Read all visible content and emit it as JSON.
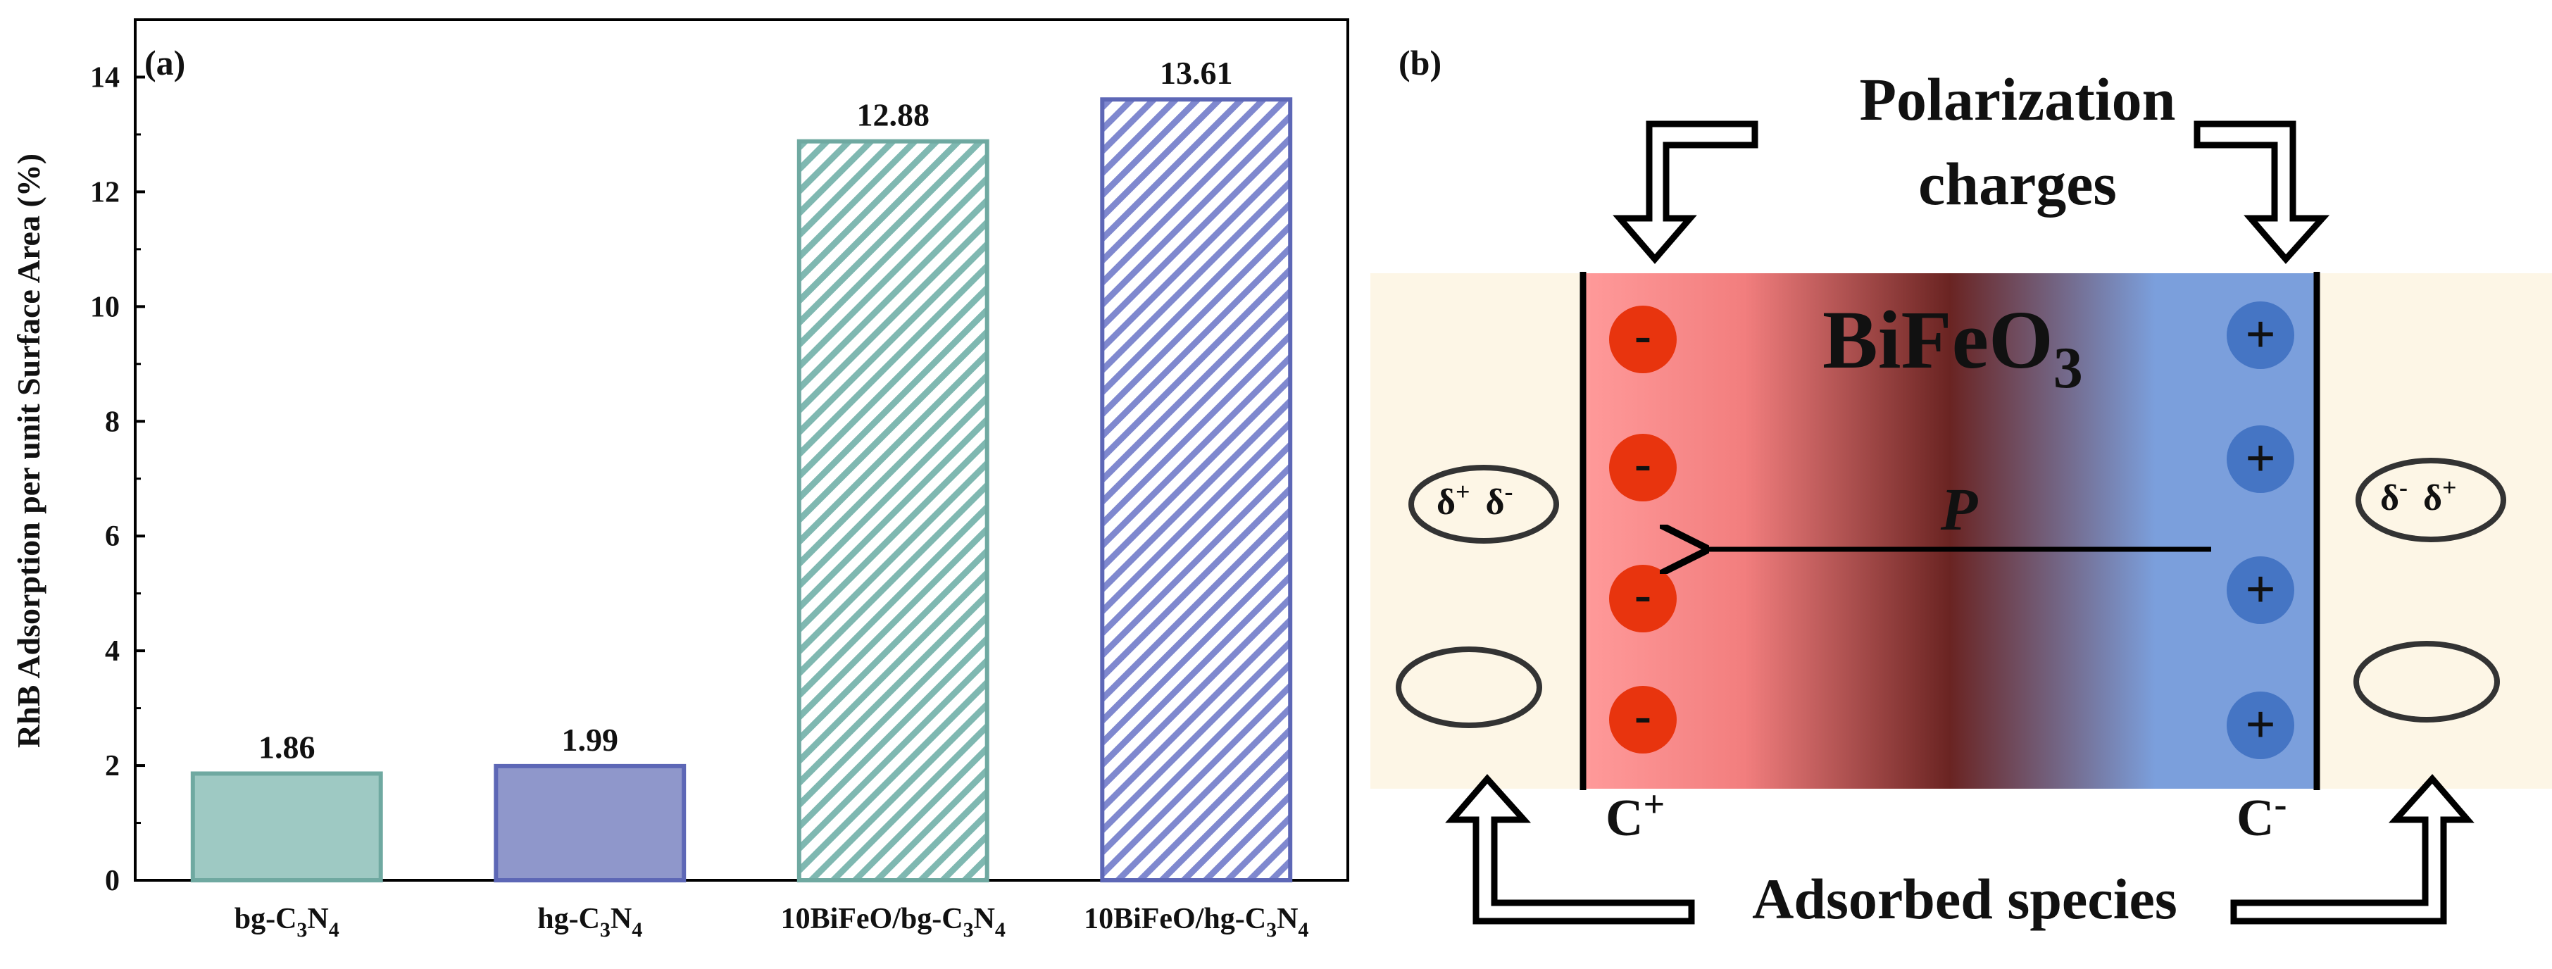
{
  "chart_data": {
    "type": "bar",
    "panel_label": "(a)",
    "ylabel": "RhB Adsorption per unit Surface Area (%)",
    "xlabel": "",
    "ylim": [
      0,
      15
    ],
    "yticks": [
      "0",
      "2",
      "4",
      "6",
      "8",
      "10",
      "12",
      "14"
    ],
    "categories": [
      {
        "base": "bg-C",
        "s1": "3",
        "mid": "N",
        "s2": "4"
      },
      {
        "base": "hg-C",
        "s1": "3",
        "mid": "N",
        "s2": "4"
      },
      {
        "base": "10BiFeO/bg-C",
        "s1": "3",
        "mid": "N",
        "s2": "4"
      },
      {
        "base": "10BiFeO/hg-C",
        "s1": "3",
        "mid": "N",
        "s2": "4"
      }
    ],
    "values": [
      1.86,
      1.99,
      12.88,
      13.61
    ],
    "value_labels": [
      "1.86",
      "1.99",
      "12.88",
      "13.61"
    ],
    "fills": [
      "solid",
      "solid",
      "hatched",
      "hatched"
    ],
    "colors": [
      "#9ec9c3",
      "#8f97cb",
      "#7fb8b1",
      "#7f88cf"
    ],
    "edge_colors": [
      "#6fa9a1",
      "#5d67b6",
      "#6fa9a1",
      "#5d67b6"
    ]
  },
  "diagram": {
    "panel_label": "(b)",
    "title_line1": "Polarization",
    "title_line2": "charges",
    "material": "BiFeO",
    "material_sub": "3",
    "polarization": "P",
    "left_charge_sign": "-",
    "right_charge_sign": "+",
    "left_electrode": "C",
    "left_electrode_sup": "+",
    "right_electrode": "C",
    "right_electrode_sup": "-",
    "species_left_1": "δ",
    "species_left_1_sup": "+",
    "species_left_2": "δ",
    "species_left_2_sup": "-",
    "species_right_1": "δ",
    "species_right_1_sup": "-",
    "species_right_2": "δ",
    "species_right_2_sup": "+",
    "bottom_label": "Adsorbed species",
    "colors": {
      "background": "#fdf6e6",
      "negative_side": "#ff9a9a",
      "center_dark": "#6a2422",
      "positive_side": "#7b9fdc",
      "negative_ion": "#e8340e",
      "positive_ion": "#4575c4"
    }
  }
}
